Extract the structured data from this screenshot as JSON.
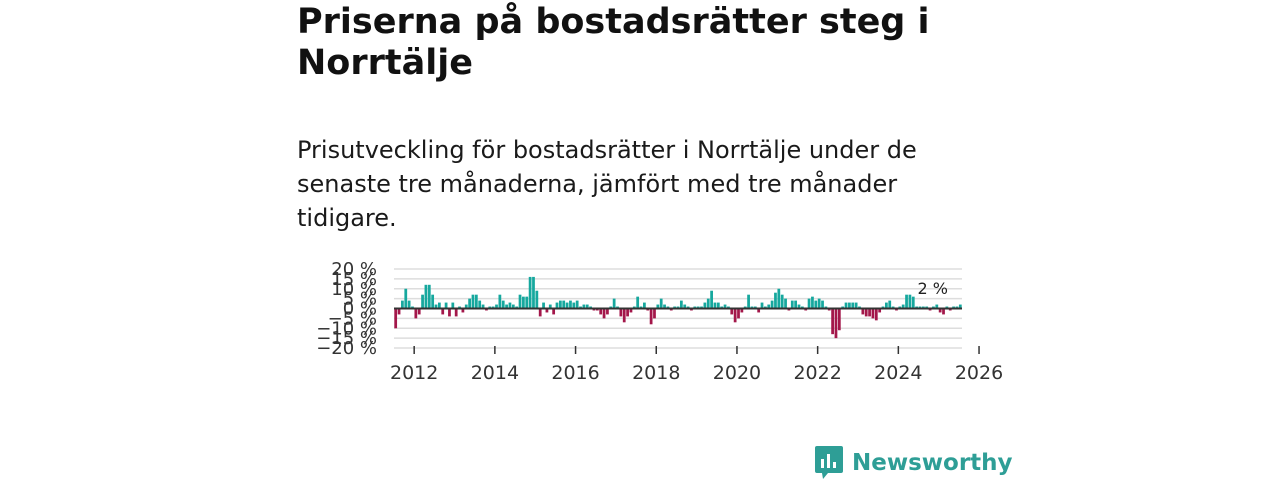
{
  "title": "Priserna på bostadsrätter steg i Norrtälje",
  "subtitle": "Prisutveckling för bostadsrätter i Norrtälje under de senaste tre månaderna, jämfört med tre månader tidigare.",
  "brand": {
    "name": "Newsworthy",
    "logo": "bar-chart-speech-bubble-logo"
  },
  "colors": {
    "positive": "#16a89e",
    "negative": "#a3174a",
    "grid": "#dddddd",
    "zero": "#333333",
    "brand": "#2e9e96"
  },
  "chart_data": {
    "type": "bar",
    "title": "",
    "xlabel": "",
    "ylabel": "",
    "unit": "%",
    "ylim": [
      -20,
      20
    ],
    "yticks": [
      20,
      15,
      10,
      5,
      0,
      -5,
      -10,
      -15,
      -20
    ],
    "ytick_labels": [
      "20 %",
      "15 %",
      "10 %",
      "5 %",
      "0 %",
      "−5 %",
      "−10 %",
      "−15 %",
      "−20 %"
    ],
    "xticks": [
      2012,
      2014,
      2016,
      2018,
      2020,
      2022,
      2024,
      2026
    ],
    "x_start": 2011.5,
    "x_step": 0.0833,
    "last_value_label": "2 %",
    "values": [
      -10,
      -3,
      4,
      10,
      4,
      1,
      -5,
      -3,
      7,
      12,
      12,
      7,
      2,
      3,
      -3,
      3,
      -4,
      3,
      -4,
      1,
      -2,
      2,
      5,
      7,
      7,
      4,
      2,
      -1,
      1,
      1,
      2,
      7,
      4,
      2,
      3,
      2,
      1,
      7,
      6,
      6,
      16,
      16,
      9,
      -4,
      3,
      -2,
      2,
      -3,
      3,
      4,
      4,
      3,
      4,
      3,
      4,
      1,
      2,
      2,
      1,
      -1,
      -1,
      -3,
      -5,
      -3,
      1,
      5,
      1,
      -4,
      -7,
      -4,
      -2,
      1,
      6,
      1,
      3,
      -1,
      -8,
      -5,
      2,
      5,
      2,
      1,
      -1,
      1,
      1,
      4,
      2,
      1,
      -1,
      1,
      1,
      1,
      3,
      5,
      9,
      3,
      3,
      1,
      2,
      1,
      -3,
      -7,
      -5,
      -2,
      1,
      7,
      1,
      1,
      -2,
      3,
      1,
      2,
      4,
      8,
      10,
      7,
      5,
      -1,
      4,
      4,
      2,
      1,
      -1,
      5,
      6,
      4,
      5,
      4,
      1,
      -1,
      -13,
      -15,
      -11,
      1,
      3,
      3,
      3,
      3,
      1,
      -3,
      -4,
      -4,
      -5,
      -6,
      -2,
      1,
      3,
      4,
      1,
      -1,
      1,
      2,
      7,
      7,
      6,
      1,
      1,
      1,
      1,
      -1,
      1,
      2,
      -2,
      -3,
      1,
      -1,
      1,
      1,
      2
    ]
  }
}
